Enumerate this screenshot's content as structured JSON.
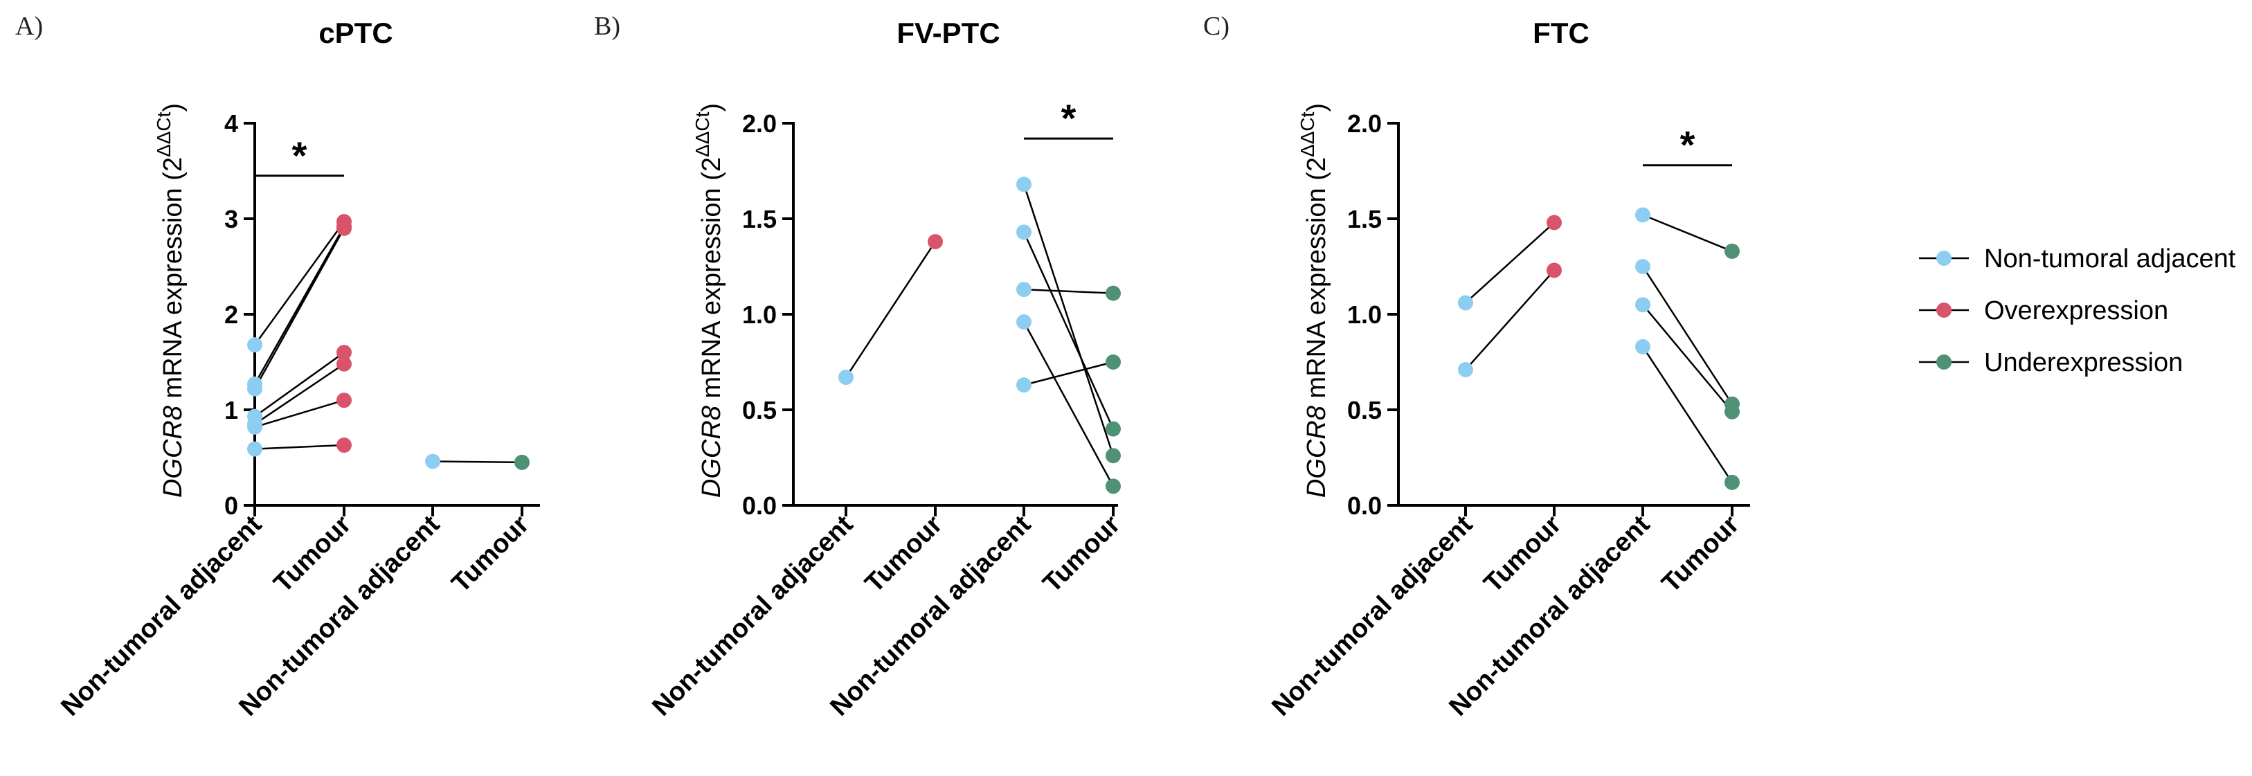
{
  "colors": {
    "non_tumoral": "#8ecdf2",
    "over": "#d9546b",
    "under": "#4f9174",
    "axis": "#000000"
  },
  "legend": [
    {
      "label": "Non-tumoral adjacent",
      "color_key": "non_tumoral"
    },
    {
      "label": "Overexpression",
      "color_key": "over"
    },
    {
      "label": "Underexpression",
      "color_key": "under"
    }
  ],
  "y_label": {
    "gene": "DGCR8",
    "rest": " mRNA expression (2",
    "sup": "ΔΔCt",
    "close": ")"
  },
  "significance_mark": "*",
  "chart_data": [
    {
      "type": "scatter",
      "panel": "A)",
      "title": "cPTC",
      "ylim": [
        0,
        4
      ],
      "yticks": [
        0,
        1,
        2,
        3,
        4
      ],
      "ytick_labels": [
        "0",
        "1",
        "2",
        "3",
        "4"
      ],
      "categories": [
        "Non-tumoral adjacent",
        "Tumour",
        "Non-tumoral adjacent",
        "Tumour"
      ],
      "groups": [
        {
          "categories": [
            0,
            1
          ],
          "pairs": [
            [
              1.68,
              2.97,
              "over"
            ],
            [
              1.27,
              2.92,
              "over"
            ],
            [
              1.22,
              2.9,
              "over"
            ],
            [
              0.93,
              1.6,
              "over"
            ],
            [
              0.85,
              1.48,
              "over"
            ],
            [
              0.82,
              1.1,
              "over"
            ],
            [
              0.59,
              0.63,
              "over"
            ]
          ]
        },
        {
          "categories": [
            2,
            3
          ],
          "pairs": [
            [
              0.46,
              0.45,
              "under"
            ]
          ]
        }
      ],
      "significance": {
        "categories": [
          0,
          1
        ],
        "y": 3.45,
        "label": "*"
      }
    },
    {
      "type": "scatter",
      "panel": "B)",
      "title": "FV-PTC",
      "ylim": [
        0,
        2.0
      ],
      "yticks": [
        0,
        0.5,
        1.0,
        1.5,
        2.0
      ],
      "ytick_labels": [
        "0.0",
        "0.5",
        "1.0",
        "1.5",
        "2.0"
      ],
      "categories": [
        "Non-tumoral adjacent",
        "Tumour",
        "Non-tumoral adjacent",
        "Tumour"
      ],
      "groups": [
        {
          "categories": [
            0,
            1
          ],
          "pairs": [
            [
              0.67,
              1.38,
              "over"
            ]
          ]
        },
        {
          "categories": [
            2,
            3
          ],
          "pairs": [
            [
              1.68,
              0.26,
              "under"
            ],
            [
              1.43,
              0.4,
              "under"
            ],
            [
              1.13,
              1.11,
              "under"
            ],
            [
              0.96,
              0.1,
              "under"
            ],
            [
              0.63,
              0.75,
              "under"
            ]
          ]
        }
      ],
      "significance": {
        "categories": [
          2,
          3
        ],
        "y": 1.92,
        "label": "*"
      }
    },
    {
      "type": "scatter",
      "panel": "C)",
      "title": "FTC",
      "ylim": [
        0,
        2.0
      ],
      "yticks": [
        0,
        0.5,
        1.0,
        1.5,
        2.0
      ],
      "ytick_labels": [
        "0.0",
        "0.5",
        "1.0",
        "1.5",
        "2.0"
      ],
      "categories": [
        "Non-tumoral adjacent",
        "Tumour",
        "Non-tumoral adjacent",
        "Tumour"
      ],
      "groups": [
        {
          "categories": [
            0,
            1
          ],
          "pairs": [
            [
              1.06,
              1.48,
              "over"
            ],
            [
              0.71,
              1.23,
              "over"
            ]
          ]
        },
        {
          "categories": [
            2,
            3
          ],
          "pairs": [
            [
              1.52,
              1.33,
              "under"
            ],
            [
              1.25,
              0.53,
              "under"
            ],
            [
              1.05,
              0.49,
              "under"
            ],
            [
              0.83,
              0.12,
              "under"
            ]
          ]
        }
      ],
      "significance": {
        "categories": [
          2,
          3
        ],
        "y": 1.78,
        "label": "*"
      }
    }
  ]
}
